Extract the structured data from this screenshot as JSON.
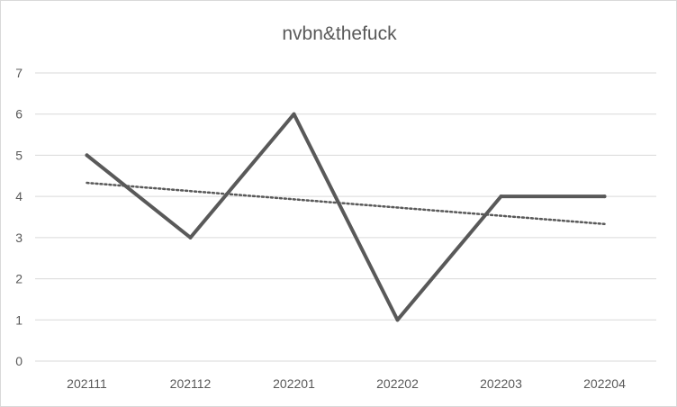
{
  "chart_data": {
    "type": "line",
    "title": "nvbn&thefuck",
    "xlabel": "",
    "ylabel": "",
    "categories": [
      "202111",
      "202112",
      "202201",
      "202202",
      "202203",
      "202204"
    ],
    "series": [
      {
        "values": [
          5,
          3,
          6,
          1,
          4,
          4
        ],
        "color": "#595959"
      }
    ],
    "trendline": {
      "type": "linear",
      "values": [
        4.33,
        4.13,
        3.93,
        3.73,
        3.53,
        3.33
      ],
      "color": "#595959",
      "style": "dotted"
    },
    "yticks": [
      "0",
      "1",
      "2",
      "3",
      "4",
      "5",
      "6",
      "7"
    ],
    "ylim": [
      0,
      7
    ],
    "grid": true,
    "legend": "none",
    "gridline_color": "#d9d9d9",
    "text_color": "#595959"
  }
}
